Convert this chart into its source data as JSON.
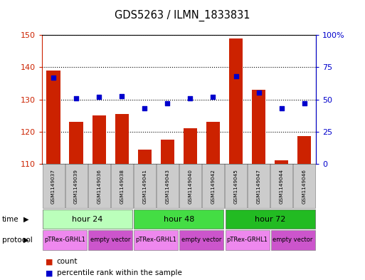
{
  "title": "GDS5263 / ILMN_1833831",
  "samples": [
    "GSM1149037",
    "GSM1149039",
    "GSM1149036",
    "GSM1149038",
    "GSM1149041",
    "GSM1149043",
    "GSM1149040",
    "GSM1149042",
    "GSM1149045",
    "GSM1149047",
    "GSM1149044",
    "GSM1149046"
  ],
  "counts": [
    139,
    123,
    125,
    125.5,
    114.5,
    117.5,
    121,
    123,
    149,
    133,
    111,
    118.5
  ],
  "percentile_ranks": [
    67,
    51,
    52,
    52.5,
    43,
    47,
    51,
    52,
    68,
    55,
    43,
    47
  ],
  "ylim_left": [
    110,
    150
  ],
  "ylim_right": [
    0,
    100
  ],
  "yticks_left": [
    110,
    120,
    130,
    140,
    150
  ],
  "yticks_right": [
    0,
    25,
    50,
    75,
    100
  ],
  "bar_color": "#cc2200",
  "dot_color": "#0000cc",
  "bar_bottom": 110,
  "time_groups": [
    {
      "label": "hour 24",
      "start": 0,
      "end": 4,
      "color": "#bbffbb"
    },
    {
      "label": "hour 48",
      "start": 4,
      "end": 8,
      "color": "#44dd44"
    },
    {
      "label": "hour 72",
      "start": 8,
      "end": 12,
      "color": "#22bb22"
    }
  ],
  "protocol_groups": [
    {
      "label": "pTRex-GRHL1",
      "start": 0,
      "end": 2,
      "color": "#ee88ee"
    },
    {
      "label": "empty vector",
      "start": 2,
      "end": 4,
      "color": "#cc55cc"
    },
    {
      "label": "pTRex-GRHL1",
      "start": 4,
      "end": 6,
      "color": "#ee88ee"
    },
    {
      "label": "empty vector",
      "start": 6,
      "end": 8,
      "color": "#cc55cc"
    },
    {
      "label": "pTRex-GRHL1",
      "start": 8,
      "end": 10,
      "color": "#ee88ee"
    },
    {
      "label": "empty vector",
      "start": 10,
      "end": 12,
      "color": "#cc55cc"
    }
  ],
  "tick_color_left": "#cc2200",
  "tick_color_right": "#0000cc",
  "background_color": "#ffffff",
  "sample_bg_color": "#cccccc"
}
